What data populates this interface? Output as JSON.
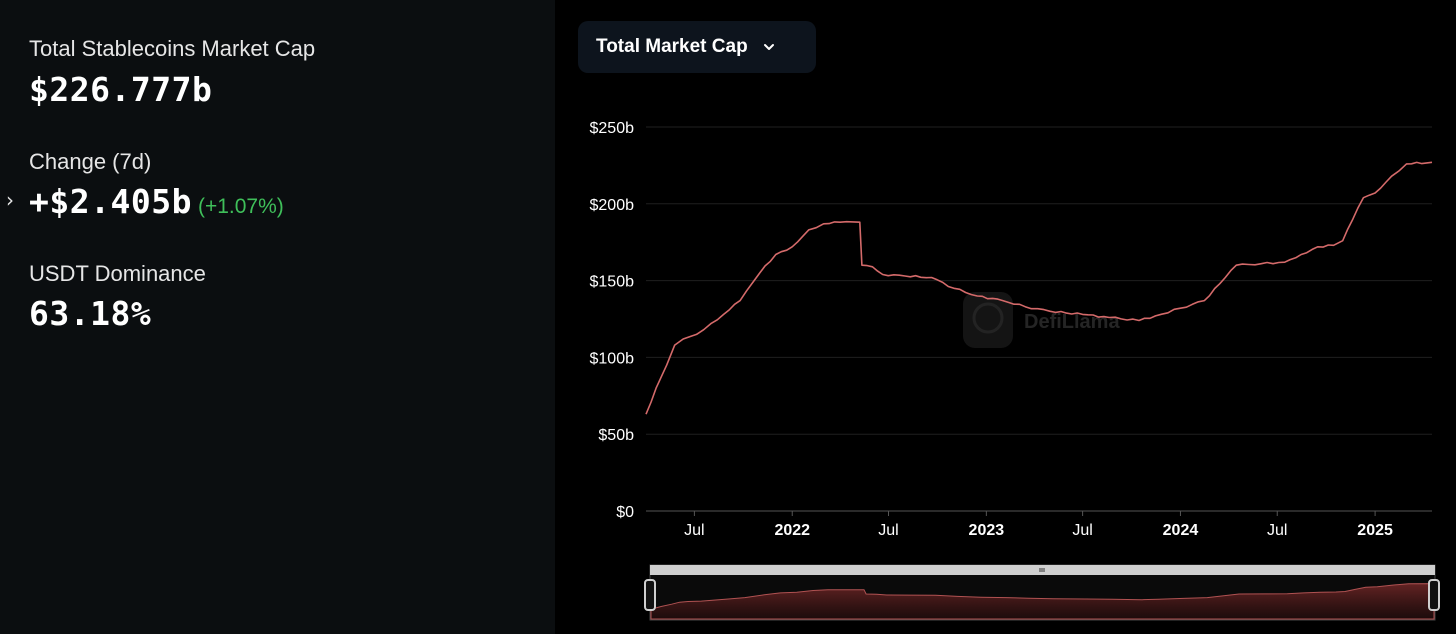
{
  "stats": {
    "market_cap_label": "Total Stablecoins Market Cap",
    "market_cap_value": "$226.777b",
    "change_label": "Change (7d)",
    "change_value": "+$2.405b",
    "change_percent": "(+1.07%)",
    "dominance_label": "USDT Dominance",
    "dominance_value": "63.18%"
  },
  "dropdown": {
    "label": "Total Market Cap"
  },
  "watermark": "DefiLlama",
  "colors": {
    "line": "#d46a6a",
    "positive": "#3fbf5a",
    "background": "#000000",
    "panel": "#0b0e10"
  },
  "chart_data": {
    "type": "line",
    "x_axis_type": "date",
    "y_ticks": [
      "$250b",
      "$200b",
      "$150b",
      "$100b",
      "$50b",
      "$0"
    ],
    "ylim": [
      0,
      250
    ],
    "xlim": [
      "2021-04-01",
      "2025-04-18"
    ],
    "x_ticks": [
      {
        "label": "Jul",
        "date": "2021-07-01",
        "bold": false
      },
      {
        "label": "2022",
        "date": "2022-01-01",
        "bold": true
      },
      {
        "label": "Jul",
        "date": "2022-07-01",
        "bold": false
      },
      {
        "label": "2023",
        "date": "2023-01-01",
        "bold": true
      },
      {
        "label": "Jul",
        "date": "2023-07-01",
        "bold": false
      },
      {
        "label": "2024",
        "date": "2024-01-01",
        "bold": true
      },
      {
        "label": "Jul",
        "date": "2024-07-01",
        "bold": false
      },
      {
        "label": "2025",
        "date": "2025-01-01",
        "bold": true
      }
    ],
    "grid": true,
    "series": [
      {
        "points": [
          [
            "2021-04-01",
            63
          ],
          [
            "2021-04-20",
            80
          ],
          [
            "2021-05-10",
            95
          ],
          [
            "2021-05-25",
            108
          ],
          [
            "2021-06-10",
            112
          ],
          [
            "2021-07-05",
            115
          ],
          [
            "2021-08-01",
            122
          ],
          [
            "2021-08-25",
            128
          ],
          [
            "2021-09-25",
            137
          ],
          [
            "2021-11-01",
            155
          ],
          [
            "2021-12-01",
            167
          ],
          [
            "2022-01-01",
            172
          ],
          [
            "2022-02-01",
            183
          ],
          [
            "2022-03-01",
            187
          ],
          [
            "2022-04-01",
            188
          ],
          [
            "2022-05-08",
            188
          ],
          [
            "2022-05-12",
            160
          ],
          [
            "2022-06-01",
            159
          ],
          [
            "2022-06-20",
            154
          ],
          [
            "2022-08-01",
            153
          ],
          [
            "2022-09-20",
            152
          ],
          [
            "2022-11-01",
            145
          ],
          [
            "2022-12-15",
            140
          ],
          [
            "2023-02-01",
            137
          ],
          [
            "2023-03-15",
            133
          ],
          [
            "2023-05-01",
            130
          ],
          [
            "2023-07-01",
            128
          ],
          [
            "2023-08-20",
            126
          ],
          [
            "2023-10-15",
            124
          ],
          [
            "2023-11-15",
            127
          ],
          [
            "2024-01-01",
            132
          ],
          [
            "2024-02-15",
            137
          ],
          [
            "2024-03-15",
            148
          ],
          [
            "2024-04-15",
            160
          ],
          [
            "2024-06-01",
            161
          ],
          [
            "2024-07-15",
            162
          ],
          [
            "2024-08-15",
            167
          ],
          [
            "2024-09-15",
            172
          ],
          [
            "2024-10-15",
            173
          ],
          [
            "2024-11-01",
            176
          ],
          [
            "2024-11-20",
            190
          ],
          [
            "2024-12-10",
            204
          ],
          [
            "2025-01-01",
            207
          ],
          [
            "2025-02-01",
            218
          ],
          [
            "2025-03-01",
            226
          ],
          [
            "2025-04-18",
            227
          ]
        ]
      }
    ]
  }
}
